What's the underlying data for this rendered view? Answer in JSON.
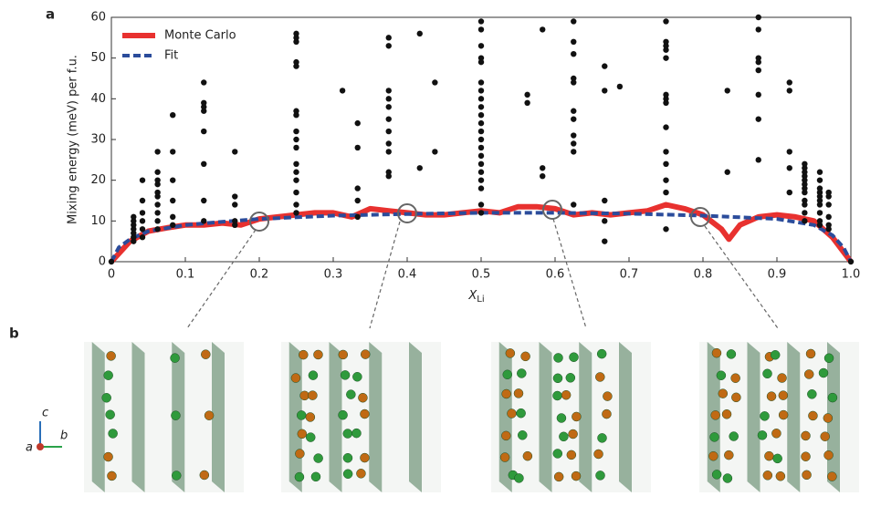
{
  "chart_data": {
    "type": "line",
    "panel_label": "a",
    "ylabel": "Mixing energy (meV) per f.u.",
    "xlabel": "X",
    "xlabel_subscript": "Li",
    "xlim": [
      0,
      1
    ],
    "ylim": [
      0,
      60
    ],
    "xticks": [
      0,
      0.1,
      0.2,
      0.3,
      0.4,
      0.5,
      0.6,
      0.7,
      0.8,
      0.9,
      {
        "value": 1,
        "label": "1.0"
      }
    ],
    "yticks": [
      0,
      10,
      20,
      30,
      40,
      50,
      60
    ],
    "legend": "upper-left",
    "series": [
      {
        "name": "Monte Carlo",
        "color": "#e8312f",
        "style": "solid",
        "x": [
          0,
          0.025,
          0.05,
          0.075,
          0.1,
          0.125,
          0.15,
          0.175,
          0.2,
          0.225,
          0.25,
          0.275,
          0.3,
          0.325,
          0.35,
          0.375,
          0.4,
          0.425,
          0.45,
          0.475,
          0.5,
          0.525,
          0.55,
          0.575,
          0.6,
          0.625,
          0.65,
          0.675,
          0.7,
          0.725,
          0.75,
          0.775,
          0.8,
          0.825,
          0.835,
          0.85,
          0.875,
          0.9,
          0.925,
          0.95,
          0.975,
          1
        ],
        "values": [
          0,
          5,
          7.5,
          8.3,
          9,
          9,
          9.5,
          9,
          10.5,
          11,
          11.5,
          12,
          12,
          11,
          13,
          12.5,
          12,
          11.5,
          11.5,
          12,
          12.5,
          12,
          13.5,
          13.5,
          13,
          11.5,
          12,
          11.5,
          12,
          12.5,
          14,
          13,
          11.5,
          8,
          5.5,
          9,
          11,
          11.5,
          11,
          10,
          6,
          0
        ]
      },
      {
        "name": "Fit",
        "color": "#2b4c9b",
        "style": "dashed",
        "x": [
          0,
          0.01,
          0.025,
          0.05,
          0.1,
          0.15,
          0.2,
          0.3,
          0.4,
          0.5,
          0.6,
          0.7,
          0.8,
          0.9,
          0.95,
          0.975,
          0.99,
          1
        ],
        "values": [
          0,
          3.5,
          5.5,
          7.5,
          9,
          9.8,
          10.5,
          11.3,
          11.7,
          12,
          12,
          11.8,
          11.3,
          10.5,
          9,
          6.5,
          3.5,
          0
        ]
      },
      {
        "color": "#111111",
        "style": "scatter",
        "x": [
          0,
          1,
          0.03,
          0.03,
          0.03,
          0.03,
          0.03,
          0.03,
          0.03,
          0.042,
          0.042,
          0.042,
          0.042,
          0.042,
          0.042,
          0.0625,
          0.0625,
          0.0625,
          0.0625,
          0.0625,
          0.0625,
          0.0625,
          0.0625,
          0.0625,
          0.0625,
          0.083,
          0.083,
          0.083,
          0.083,
          0.083,
          0.083,
          0.125,
          0.125,
          0.125,
          0.125,
          0.125,
          0.125,
          0.125,
          0.125,
          0.167,
          0.167,
          0.167,
          0.167,
          0.167,
          0.25,
          0.25,
          0.25,
          0.25,
          0.25,
          0.25,
          0.25,
          0.25,
          0.25,
          0.25,
          0.25,
          0.25,
          0.25,
          0.25,
          0.25,
          0.25,
          0.3125,
          0.333,
          0.333,
          0.333,
          0.333,
          0.333,
          0.375,
          0.375,
          0.375,
          0.375,
          0.375,
          0.375,
          0.375,
          0.375,
          0.375,
          0.375,
          0.375,
          0.417,
          0.417,
          0.4375,
          0.4375,
          0.5,
          0.5,
          0.5,
          0.5,
          0.5,
          0.5,
          0.5,
          0.5,
          0.5,
          0.5,
          0.5,
          0.5,
          0.5,
          0.5,
          0.5,
          0.5,
          0.5,
          0.5,
          0.5,
          0.5,
          0.5,
          0.5625,
          0.5625,
          0.583,
          0.583,
          0.583,
          0.625,
          0.625,
          0.625,
          0.625,
          0.625,
          0.625,
          0.625,
          0.625,
          0.625,
          0.625,
          0.625,
          0.667,
          0.667,
          0.667,
          0.667,
          0.667,
          0.6875,
          0.75,
          0.75,
          0.75,
          0.75,
          0.75,
          0.75,
          0.75,
          0.75,
          0.75,
          0.75,
          0.75,
          0.75,
          0.75,
          0.75,
          0.833,
          0.833,
          0.875,
          0.875,
          0.875,
          0.875,
          0.875,
          0.875,
          0.875,
          0.875,
          0.917,
          0.917,
          0.917,
          0.917,
          0.917,
          0.9375,
          0.9375,
          0.9375,
          0.9375,
          0.9375,
          0.9375,
          0.9375,
          0.9375,
          0.9375,
          0.9375,
          0.9375,
          0.9375,
          0.958,
          0.958,
          0.958,
          0.958,
          0.958,
          0.958,
          0.958,
          0.958,
          0.958,
          0.958,
          0.97,
          0.97,
          0.97,
          0.97,
          0.97,
          0.97
        ],
        "values": [
          0,
          0,
          5,
          6,
          7,
          8,
          9,
          10,
          11,
          6,
          8,
          10,
          12,
          15,
          20,
          8,
          10,
          12,
          14,
          16,
          17,
          19,
          20,
          22,
          27,
          9,
          11,
          15,
          20,
          27,
          36,
          10,
          15,
          24,
          32,
          37,
          38,
          39,
          44,
          9,
          10,
          14,
          16,
          27,
          12,
          14,
          17,
          20,
          22,
          24,
          28,
          30,
          32,
          36,
          37,
          48,
          49,
          54,
          55,
          56,
          42,
          11,
          15,
          18,
          28,
          34,
          21,
          22,
          27,
          29,
          32,
          35,
          38,
          40,
          42,
          53,
          55,
          23,
          56,
          27,
          44,
          12,
          14,
          18,
          20,
          22,
          24,
          26,
          28,
          30,
          32,
          34,
          36,
          38,
          40,
          42,
          44,
          49,
          50,
          53,
          57,
          59,
          39,
          41,
          21,
          23,
          57,
          14,
          27,
          29,
          31,
          35,
          37,
          44,
          45,
          51,
          54,
          59,
          5,
          10,
          15,
          42,
          48,
          43,
          8,
          17,
          20,
          24,
          27,
          33,
          39,
          40,
          41,
          50,
          52,
          53,
          54,
          59,
          22,
          42,
          25,
          35,
          41,
          47,
          49,
          50,
          57,
          60,
          17,
          23,
          27,
          42,
          44,
          10,
          12,
          14,
          15,
          17,
          18,
          19,
          20,
          21,
          22,
          23,
          24,
          9,
          10,
          12,
          14,
          15,
          16,
          17,
          18,
          20,
          22,
          8,
          9,
          11,
          14,
          16,
          17
        ]
      }
    ]
  },
  "panel_b": {
    "label": "b",
    "axes": {
      "a": "a",
      "b": "b",
      "c": "c"
    }
  }
}
